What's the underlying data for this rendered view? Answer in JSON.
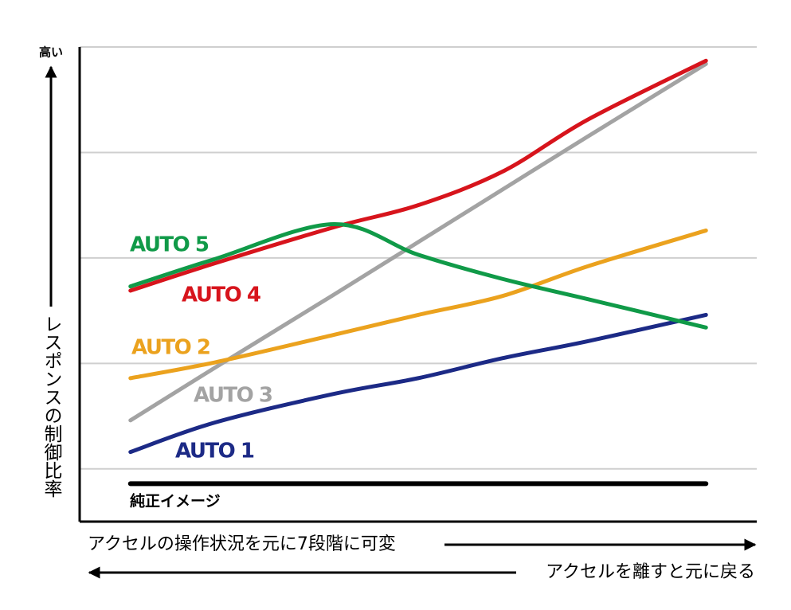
{
  "chart_data": {
    "type": "line",
    "y_top_label": "高い",
    "ylabel": "レスポンスの制御比率",
    "xlabel": "アクセルの操作状況を元に7段階に可変",
    "xlabel_return": "アクセルを離すと元に戻る",
    "x": [
      7.5,
      20,
      37.5,
      50,
      62.5,
      75,
      92.5
    ],
    "xlim": [
      0,
      100
    ],
    "ylim": [
      0.5,
      5
    ],
    "yticks": [
      1,
      2,
      3,
      4,
      5
    ],
    "grid": true,
    "series": [
      {
        "name": "AUTO 3",
        "color": "#a3a3a3",
        "values": [
          1.46,
          1.96,
          2.65,
          3.15,
          3.65,
          4.15,
          4.84
        ]
      },
      {
        "name": "AUTO 2",
        "color": "#eba21e",
        "values": [
          1.86,
          2.01,
          2.27,
          2.46,
          2.64,
          2.92,
          3.26
        ]
      },
      {
        "name": "AUTO 1",
        "color": "#1c2a86",
        "values": [
          1.16,
          1.44,
          1.71,
          1.86,
          2.05,
          2.21,
          2.46
        ]
      },
      {
        "name": "AUTO 4",
        "color": "#d7141c",
        "values": [
          2.69,
          2.95,
          3.29,
          3.5,
          3.82,
          4.31,
          4.87
        ]
      },
      {
        "name": "AUTO 5",
        "color": "#109a48",
        "values": [
          2.73,
          2.99,
          3.32,
          3.03,
          2.8,
          2.61,
          2.34
        ]
      },
      {
        "name": "純正イメージ",
        "color": "#000000",
        "values": [
          0.86,
          0.86,
          0.86,
          0.86,
          0.86,
          0.86,
          0.86
        ]
      }
    ]
  }
}
